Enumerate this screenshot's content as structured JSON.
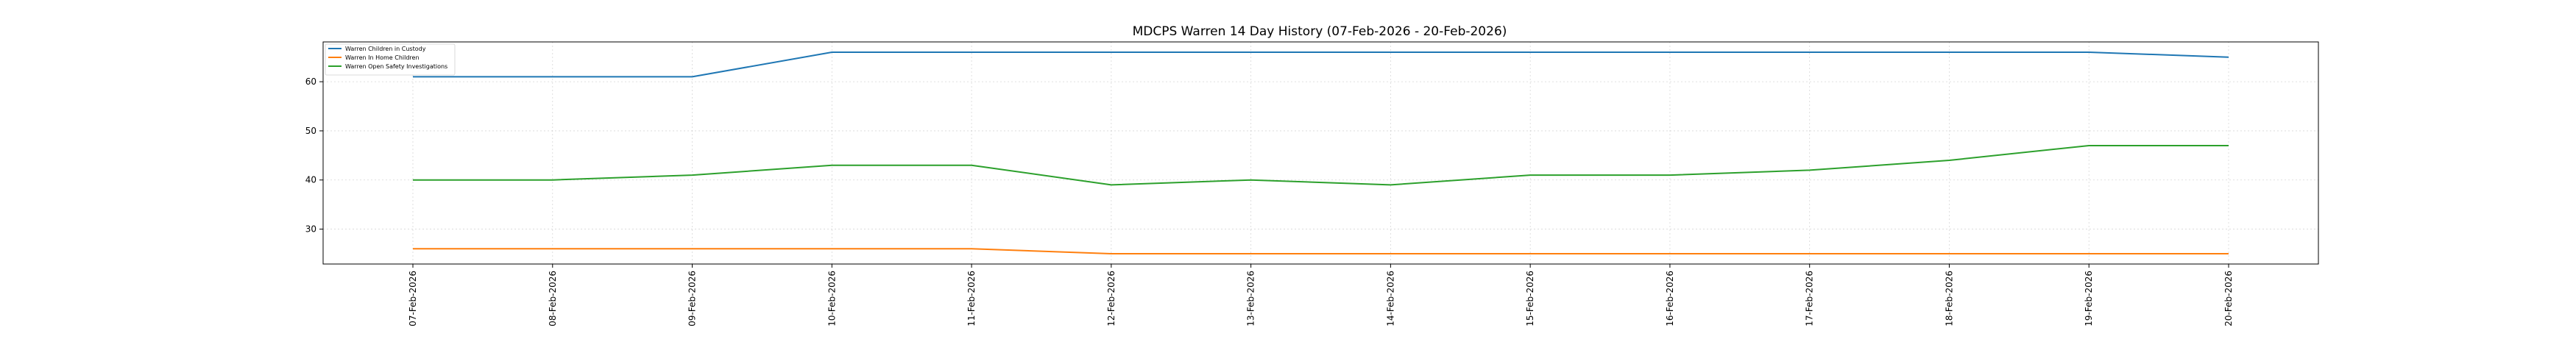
{
  "chart_data": {
    "type": "line",
    "title": "MDCPS Warren 14 Day History (07-Feb-2026 - 20-Feb-2026)",
    "xlabel": "",
    "ylabel": "",
    "x": [
      "07-Feb-2026",
      "08-Feb-2026",
      "09-Feb-2026",
      "10-Feb-2026",
      "11-Feb-2026",
      "12-Feb-2026",
      "13-Feb-2026",
      "14-Feb-2026",
      "15-Feb-2026",
      "16-Feb-2026",
      "17-Feb-2026",
      "18-Feb-2026",
      "19-Feb-2026",
      "20-Feb-2026"
    ],
    "yticks": [
      30,
      40,
      50,
      60
    ],
    "ylim": [
      22.9,
      68.1
    ],
    "grid": true,
    "legend_position": "top-left",
    "series": [
      {
        "name": "Warren Children in Custody",
        "color": "#1f77b4",
        "values": [
          61,
          61,
          61,
          66,
          66,
          66,
          66,
          66,
          66,
          66,
          66,
          66,
          66,
          65
        ]
      },
      {
        "name": "Warren In Home Children",
        "color": "#ff7f0e",
        "values": [
          26,
          26,
          26,
          26,
          26,
          25,
          25,
          25,
          25,
          25,
          25,
          25,
          25,
          25
        ]
      },
      {
        "name": "Warren Open Safety Investigations",
        "color": "#2ca02c",
        "values": [
          40,
          40,
          41,
          43,
          43,
          39,
          40,
          39,
          41,
          41,
          42,
          44,
          47,
          47
        ]
      }
    ]
  }
}
